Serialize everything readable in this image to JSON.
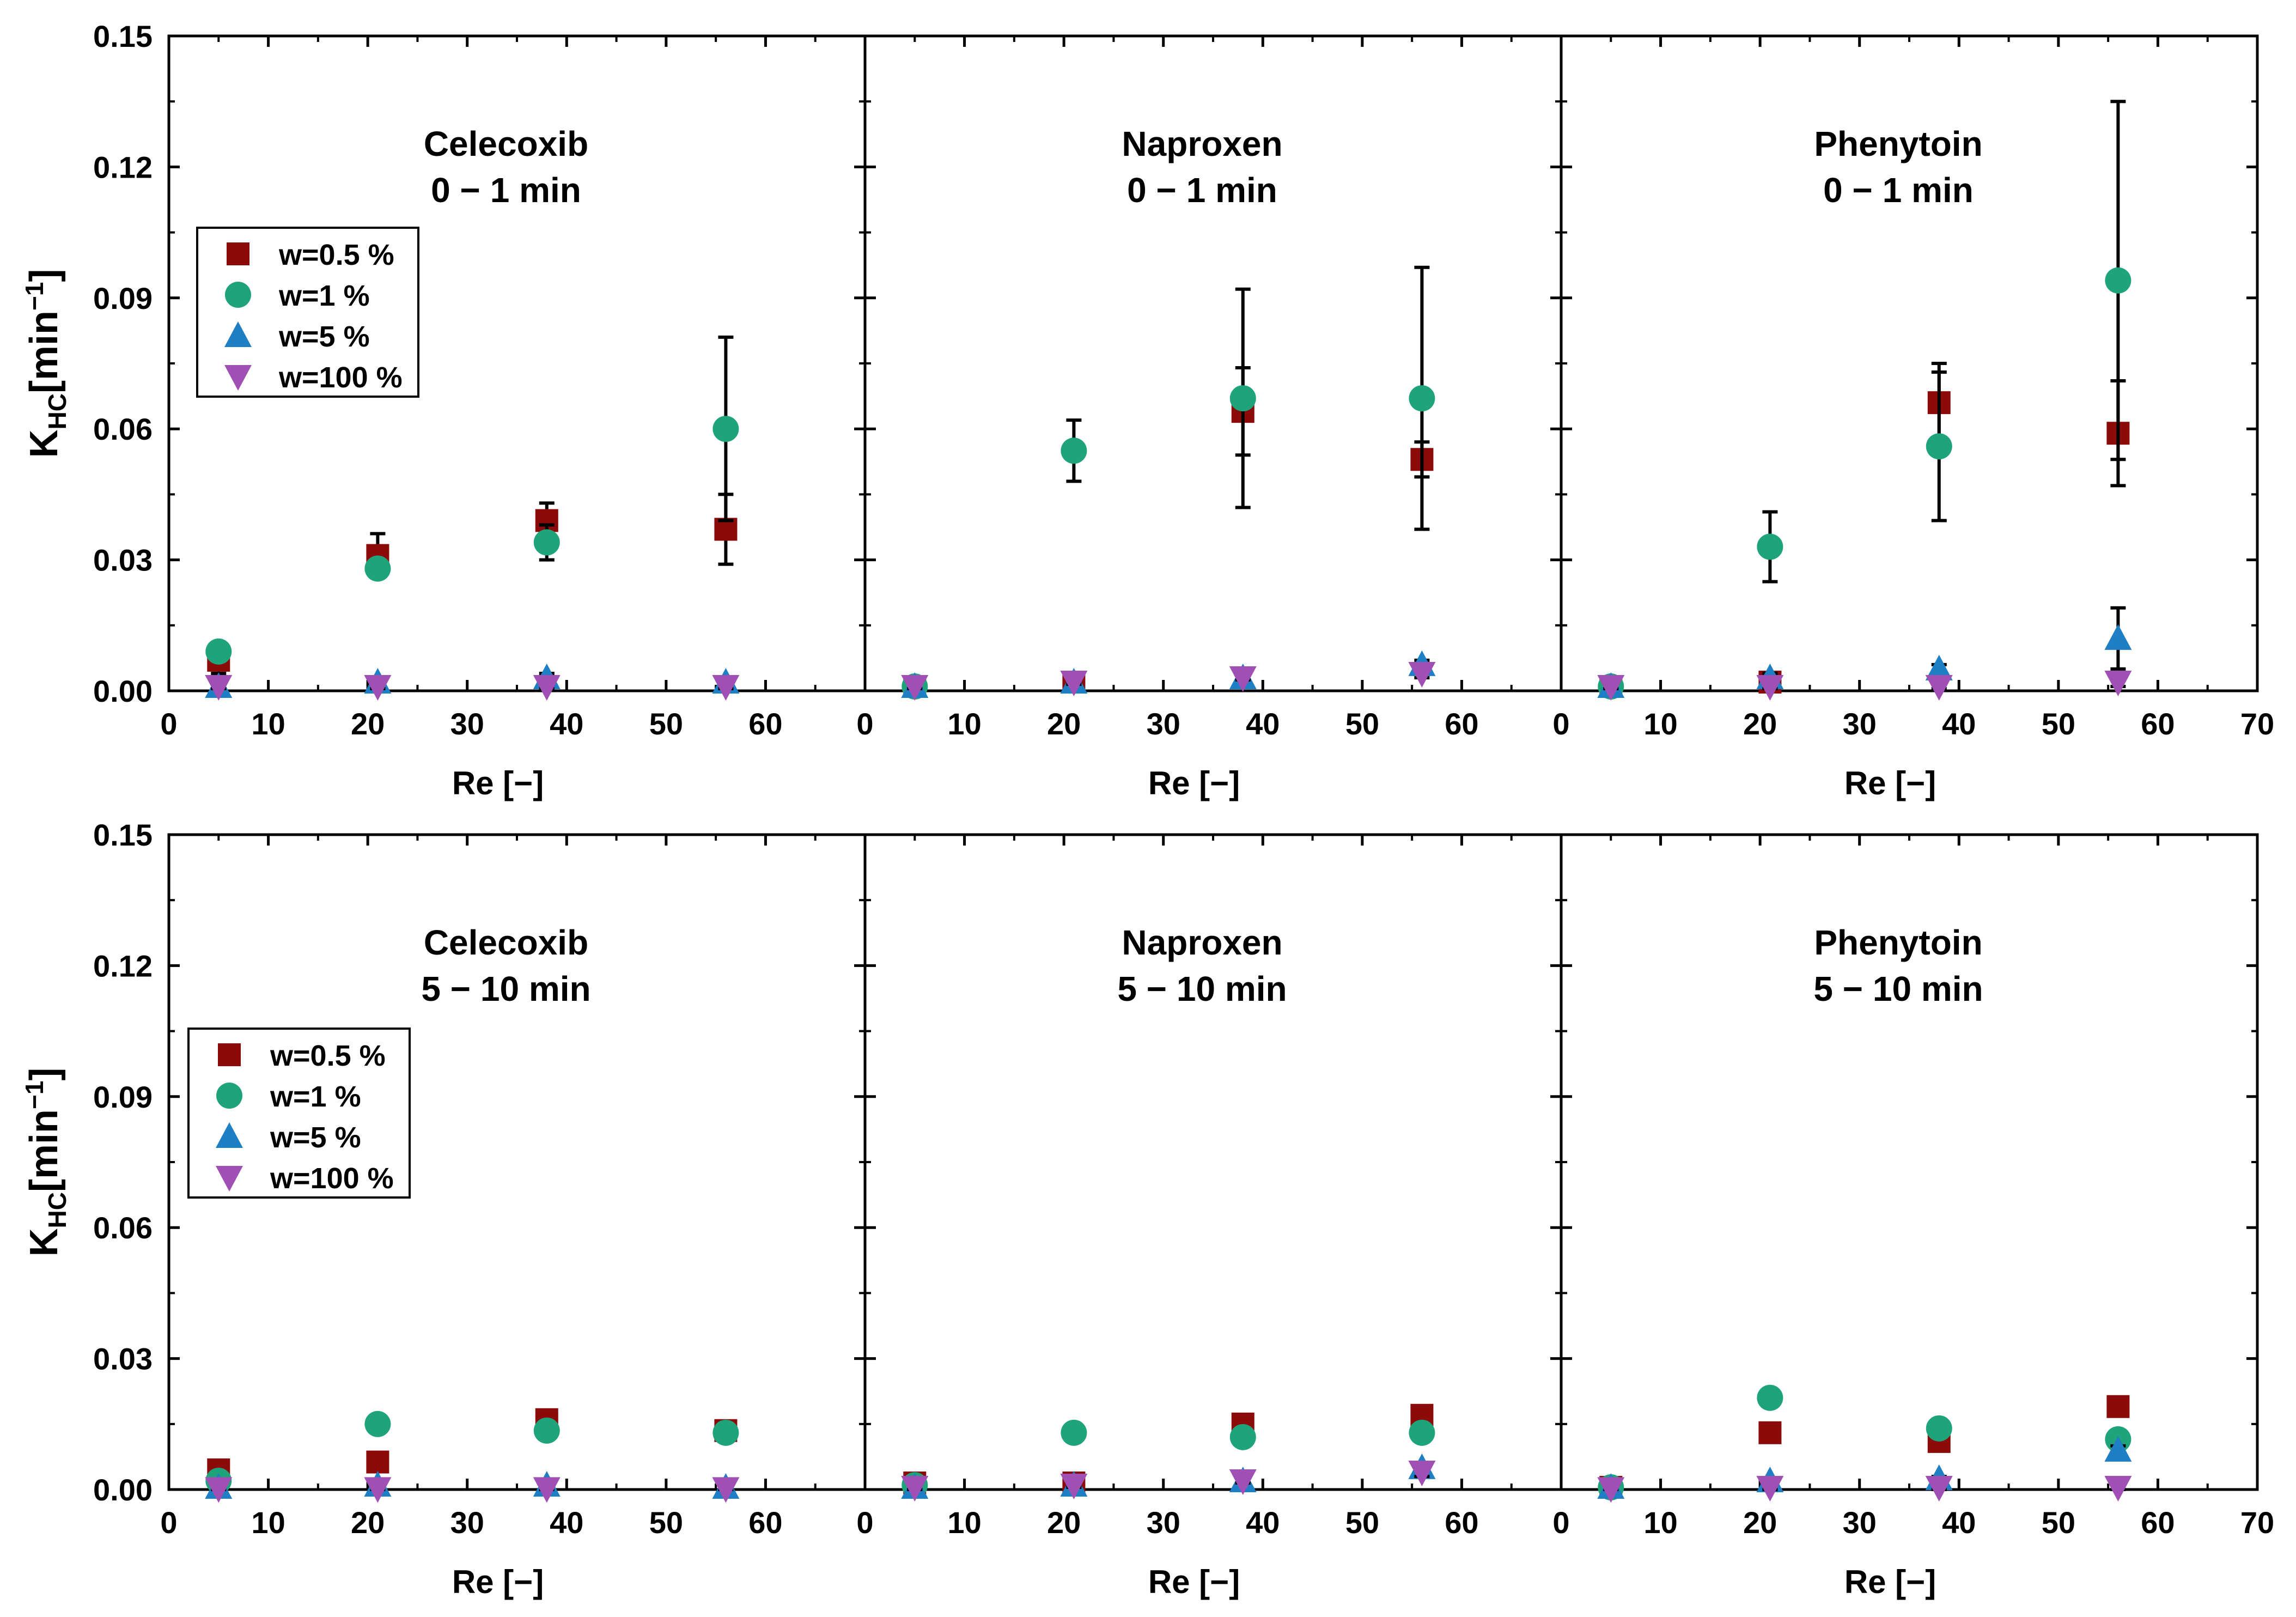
{
  "figure": {
    "y_axis_label": "K",
    "y_axis_label_sub": "HC",
    "y_axis_label_unit": "[min",
    "y_axis_label_sup": "−1",
    "y_axis_label_close": "]",
    "x_axis_label": "Re [−]",
    "y_ticks": [
      "0.00",
      "0.03",
      "0.06",
      "0.09",
      "0.12",
      "0.15"
    ],
    "x_ticks": [
      "0",
      "10",
      "20",
      "30",
      "40",
      "50",
      "60"
    ],
    "x_ticks_last_panel": [
      "0",
      "10",
      "20",
      "30",
      "40",
      "50",
      "60",
      "70"
    ]
  },
  "series_legend": [
    {
      "name": "w=0.5 %",
      "marker": "square",
      "color": "#8B0A0A"
    },
    {
      "name": "w=1 %",
      "marker": "circle",
      "color": "#1FA37A"
    },
    {
      "name": "w=5 %",
      "marker": "triangle-up",
      "color": "#1F7FC4"
    },
    {
      "name": "w=100 %",
      "marker": "triangle-down",
      "color": "#A050B4"
    }
  ],
  "chart_data": [
    {
      "type": "scatter",
      "row": "top",
      "panel": 0,
      "title": "Celecoxib",
      "subtitle": "0 − 1 min",
      "xlabel": "Re [−]",
      "ylabel": "KHC[min−1]",
      "xlim": [
        0,
        70
      ],
      "ylim": [
        0,
        0.15
      ],
      "legend": "upper-left",
      "series": [
        {
          "name": "w=0.5 %",
          "x": [
            5,
            21,
            38,
            56
          ],
          "y": [
            0.007,
            0.031,
            0.039,
            0.037
          ],
          "err": [
            0.003,
            0.005,
            0.004,
            0.008
          ]
        },
        {
          "name": "w=1 %",
          "x": [
            5,
            21,
            38,
            56
          ],
          "y": [
            0.009,
            0.028,
            0.034,
            0.06
          ],
          "err": [
            0.002,
            0.002,
            0.004,
            0.021
          ]
        },
        {
          "name": "w=5 %",
          "x": [
            5,
            21,
            38,
            56
          ],
          "y": [
            0.001,
            0.002,
            0.003,
            0.002
          ],
          "err": [
            0.001,
            0.001,
            0.001,
            0.001
          ]
        },
        {
          "name": "w=100 %",
          "x": [
            5,
            21,
            38,
            56
          ],
          "y": [
            0.001,
            0.001,
            0.001,
            0.001
          ],
          "err": [
            0.0005,
            0.0005,
            0.0005,
            0.0005
          ]
        }
      ]
    },
    {
      "type": "scatter",
      "row": "top",
      "panel": 1,
      "title": "Naproxen",
      "subtitle": "0 − 1 min",
      "xlabel": "Re [−]",
      "ylabel": "",
      "xlim": [
        0,
        70
      ],
      "ylim": [
        0,
        0.15
      ],
      "series": [
        {
          "name": "w=0.5 %",
          "x": [
            5,
            21,
            38,
            56
          ],
          "y": [
            0.001,
            0.002,
            0.064,
            0.053
          ],
          "err": [
            0.001,
            0.001,
            0.01,
            0.004
          ]
        },
        {
          "name": "w=1 %",
          "x": [
            5,
            21,
            38,
            56
          ],
          "y": [
            0.001,
            0.055,
            0.067,
            0.067
          ],
          "err": [
            0.001,
            0.007,
            0.025,
            0.03
          ]
        },
        {
          "name": "w=5 %",
          "x": [
            5,
            21,
            38,
            56
          ],
          "y": [
            0.001,
            0.002,
            0.003,
            0.006
          ],
          "err": [
            0.0005,
            0.0005,
            0.001,
            0.001
          ]
        },
        {
          "name": "w=100 %",
          "x": [
            5,
            21,
            38,
            56
          ],
          "y": [
            0.001,
            0.002,
            0.003,
            0.004
          ],
          "err": [
            0.0005,
            0.0005,
            0.0005,
            0.001
          ]
        }
      ]
    },
    {
      "type": "scatter",
      "row": "top",
      "panel": 2,
      "title": "Phenytoin",
      "subtitle": "0 − 1 min",
      "xlabel": "Re [−]",
      "ylabel": "",
      "xlim": [
        0,
        70
      ],
      "ylim": [
        0,
        0.15
      ],
      "series": [
        {
          "name": "w=0.5 %",
          "x": [
            5,
            21,
            38,
            56
          ],
          "y": [
            0.001,
            0.002,
            0.066,
            0.059
          ],
          "err": [
            0.001,
            0.001,
            0.009,
            0.012
          ]
        },
        {
          "name": "w=1 %",
          "x": [
            5,
            21,
            38,
            56
          ],
          "y": [
            0.001,
            0.033,
            0.056,
            0.094
          ],
          "err": [
            0.001,
            0.008,
            0.017,
            0.041
          ]
        },
        {
          "name": "w=5 %",
          "x": [
            5,
            21,
            38,
            56
          ],
          "y": [
            0.001,
            0.003,
            0.005,
            0.012
          ],
          "err": [
            0.0005,
            0.001,
            0.001,
            0.007
          ]
        },
        {
          "name": "w=100 %",
          "x": [
            5,
            21,
            38,
            56
          ],
          "y": [
            0.001,
            0.001,
            0.001,
            0.002
          ],
          "err": [
            0.0005,
            0.0005,
            0.0005,
            0.001
          ]
        }
      ]
    },
    {
      "type": "scatter",
      "row": "bottom",
      "panel": 0,
      "title": "Celecoxib",
      "subtitle": "5 − 10 min",
      "xlabel": "Re [−]",
      "ylabel": "KHC[min−1]",
      "xlim": [
        0,
        70
      ],
      "ylim": [
        0,
        0.15
      ],
      "legend": "middle-left",
      "series": [
        {
          "name": "w=0.5 %",
          "x": [
            5,
            21,
            38,
            56
          ],
          "y": [
            0.0045,
            0.0063,
            0.016,
            0.0135
          ],
          "err": [
            0.001,
            0.001,
            0.001,
            0.001
          ]
        },
        {
          "name": "w=1 %",
          "x": [
            5,
            21,
            38,
            56
          ],
          "y": [
            0.002,
            0.015,
            0.0135,
            0.013
          ],
          "err": [
            0.001,
            0.001,
            0.001,
            0.001
          ]
        },
        {
          "name": "w=5 %",
          "x": [
            5,
            21,
            38,
            56
          ],
          "y": [
            0.0005,
            0.001,
            0.001,
            0.0005
          ],
          "err": [
            0.0005,
            0.0005,
            0.0005,
            0.0005
          ]
        },
        {
          "name": "w=100 %",
          "x": [
            5,
            21,
            38,
            56
          ],
          "y": [
            0.0002,
            0.0002,
            0.0002,
            0.0002
          ],
          "err": [
            0.0005,
            0.0005,
            0.0005,
            0.0005
          ]
        }
      ]
    },
    {
      "type": "scatter",
      "row": "bottom",
      "panel": 1,
      "title": "Naproxen",
      "subtitle": "5 − 10 min",
      "xlabel": "Re [−]",
      "ylabel": "",
      "xlim": [
        0,
        70
      ],
      "ylim": [
        0,
        0.15
      ],
      "series": [
        {
          "name": "w=0.5 %",
          "x": [
            5,
            21,
            38,
            56
          ],
          "y": [
            0.0015,
            0.0015,
            0.015,
            0.017
          ],
          "err": [
            0.0005,
            0.0005,
            0.001,
            0.001
          ]
        },
        {
          "name": "w=1 %",
          "x": [
            5,
            21,
            38,
            56
          ],
          "y": [
            0.001,
            0.013,
            0.012,
            0.013
          ],
          "err": [
            0.0005,
            0.001,
            0.001,
            0.001
          ]
        },
        {
          "name": "w=5 %",
          "x": [
            5,
            21,
            38,
            56
          ],
          "y": [
            0.0005,
            0.001,
            0.002,
            0.005
          ],
          "err": [
            0.0005,
            0.0005,
            0.001,
            0.001
          ]
        },
        {
          "name": "w=100 %",
          "x": [
            5,
            21,
            38,
            56
          ],
          "y": [
            0.0005,
            0.001,
            0.002,
            0.004
          ],
          "err": [
            0.0005,
            0.0005,
            0.0005,
            0.001
          ]
        }
      ]
    },
    {
      "type": "scatter",
      "row": "bottom",
      "panel": 2,
      "title": "Phenytoin",
      "subtitle": "5 − 10 min",
      "xlabel": "Re [−]",
      "ylabel": "",
      "xlim": [
        0,
        70
      ],
      "ylim": [
        0,
        0.15
      ],
      "series": [
        {
          "name": "w=0.5 %",
          "x": [
            5,
            21,
            38,
            56
          ],
          "y": [
            0.0005,
            0.013,
            0.011,
            0.019
          ],
          "err": [
            0.0005,
            0.001,
            0.001,
            0.001
          ]
        },
        {
          "name": "w=1 %",
          "x": [
            5,
            21,
            38,
            56
          ],
          "y": [
            0.0005,
            0.021,
            0.014,
            0.0115
          ],
          "err": [
            0.0005,
            0.001,
            0.001,
            0.001
          ]
        },
        {
          "name": "w=5 %",
          "x": [
            5,
            21,
            38,
            56
          ],
          "y": [
            0.0005,
            0.002,
            0.0025,
            0.009
          ],
          "err": [
            0.0005,
            0.0005,
            0.0005,
            0.001
          ]
        },
        {
          "name": "w=100 %",
          "x": [
            5,
            21,
            38,
            56
          ],
          "y": [
            0.0002,
            0.0005,
            0.0005,
            0.0005
          ],
          "err": [
            0.0005,
            0.0005,
            0.0005,
            0.0005
          ]
        }
      ]
    }
  ]
}
